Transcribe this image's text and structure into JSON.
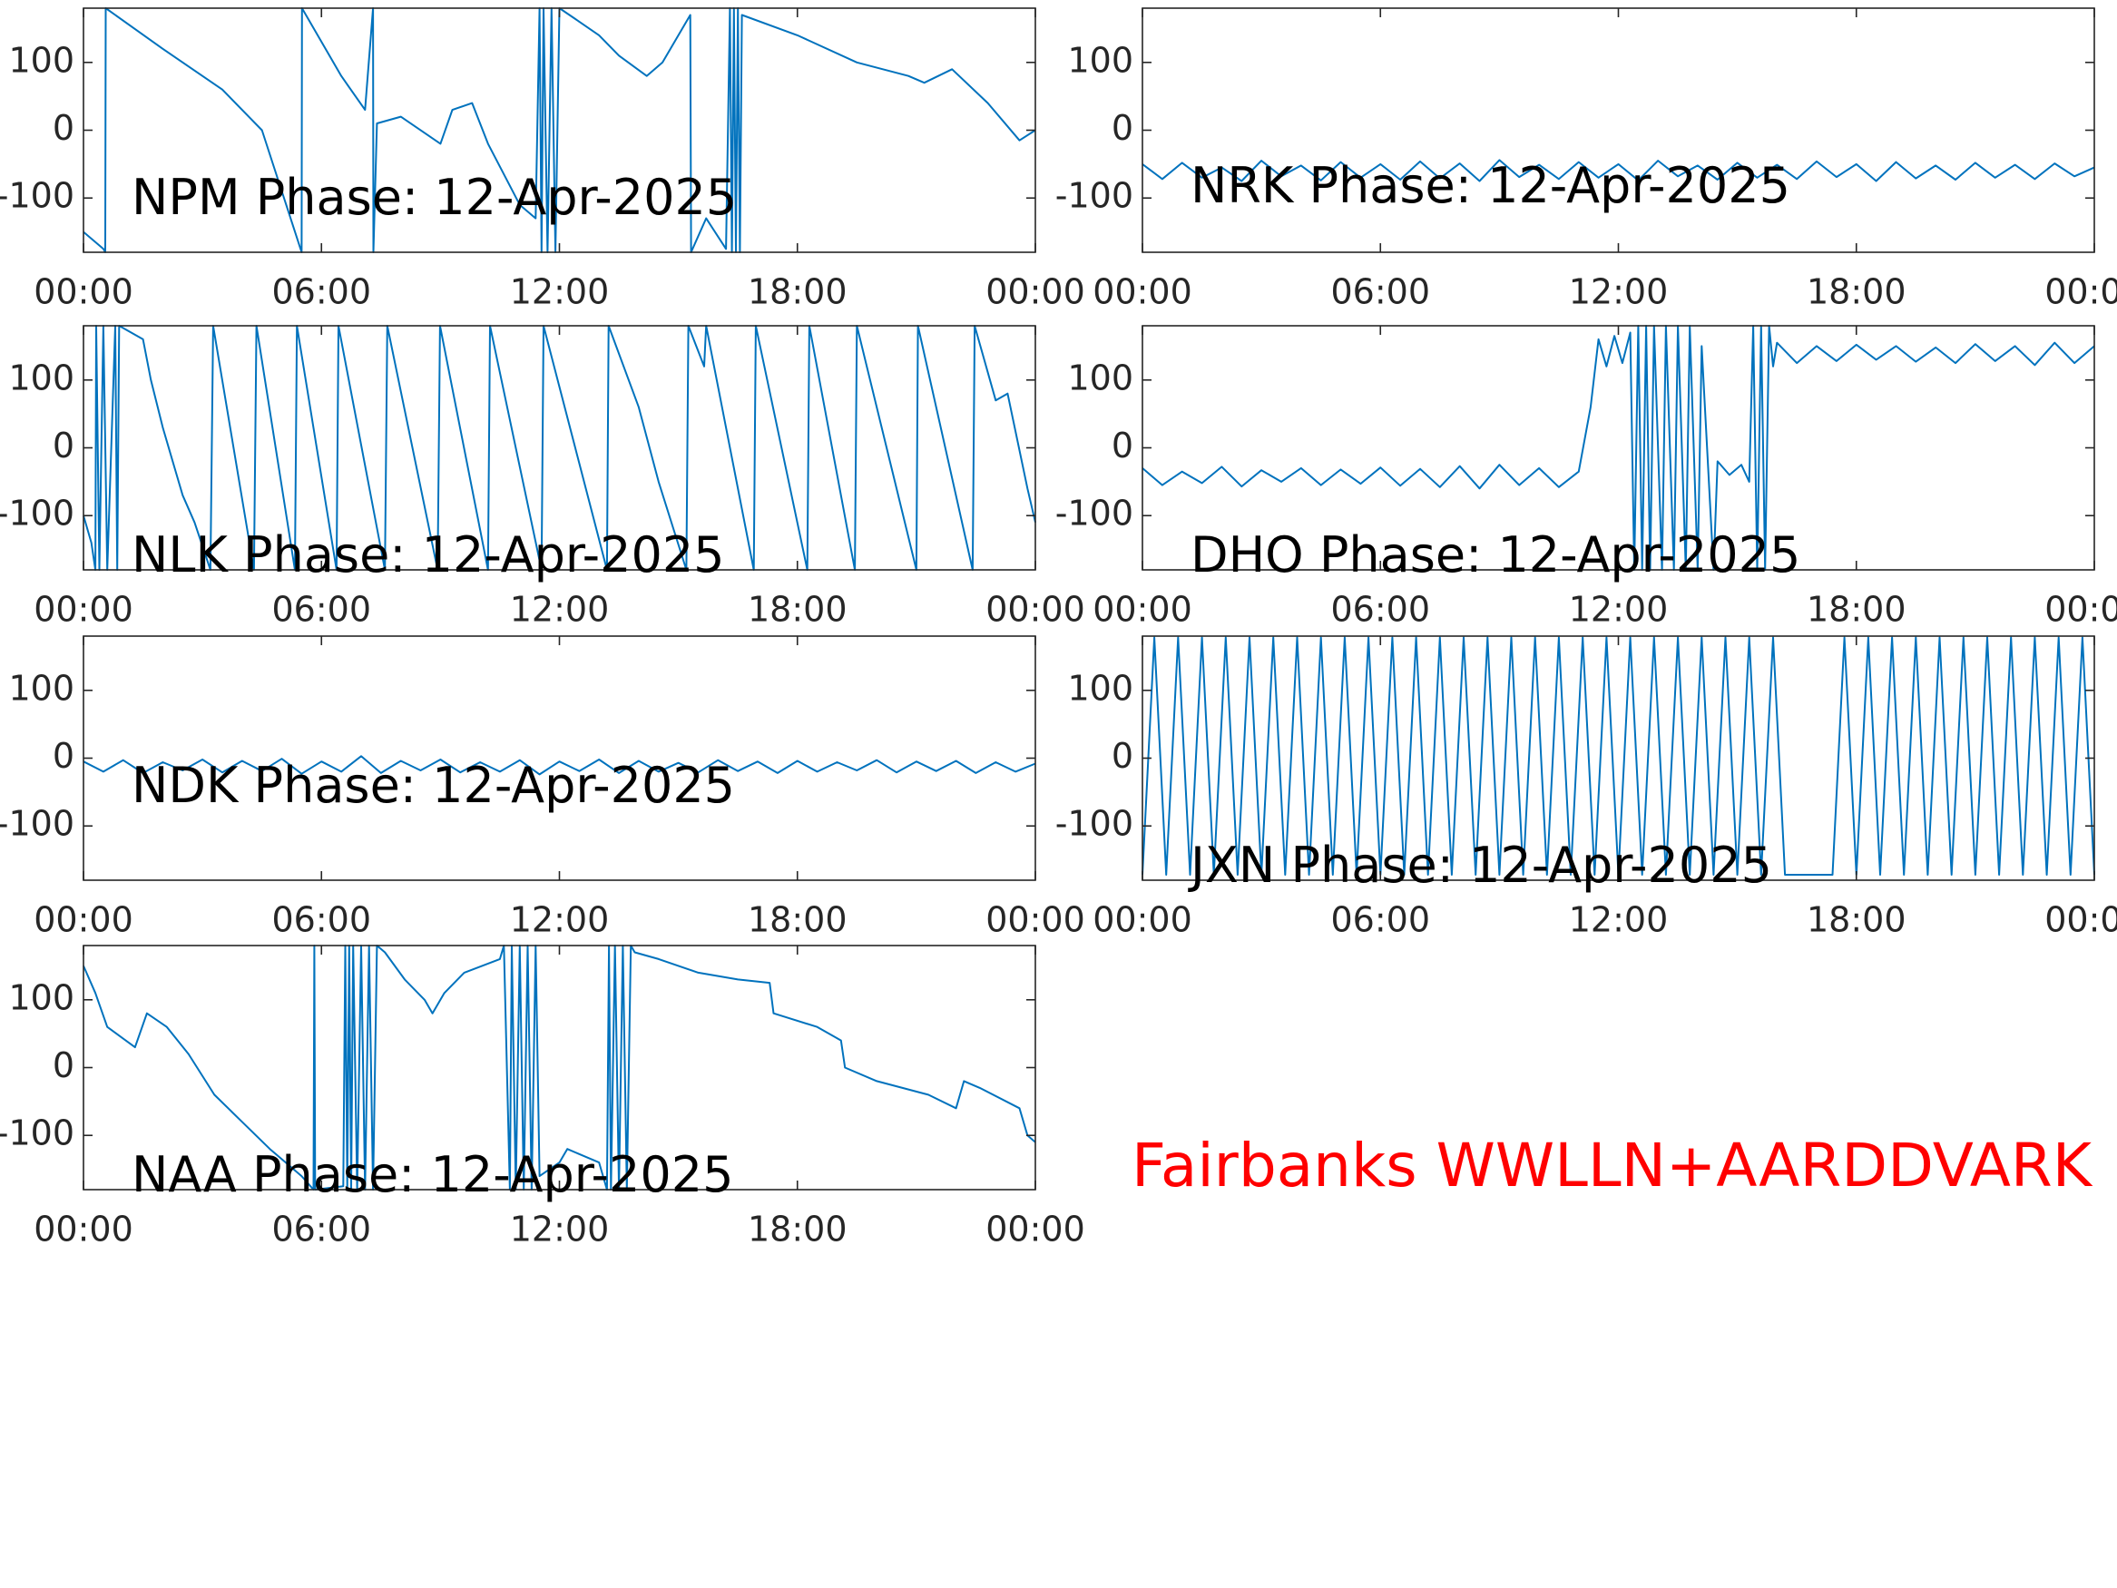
{
  "chart_data": [
    {
      "type": "line",
      "title": "NPM Phase: 12-Apr-2025",
      "color": "#0072bd",
      "x": [
        0,
        0.5,
        0.55,
        0.56,
        2,
        3.5,
        4.5,
        5.5,
        5.51,
        6.5,
        7.1,
        7.3,
        7.31,
        7.4,
        8,
        9,
        9.3,
        9.8,
        10.2,
        11,
        11.4,
        11.5,
        11.55,
        11.6,
        11.7,
        11.8,
        11.9,
        12,
        12.5,
        13,
        13.5,
        14.2,
        14.6,
        15.3,
        15.32,
        15.7,
        16.2,
        16.3,
        16.35,
        16.4,
        16.45,
        16.5,
        16.55,
        16.6,
        18,
        19.5,
        20.8,
        21.2,
        21.9,
        22.8,
        23.6,
        24
      ],
      "values": [
        -150,
        -175,
        -180,
        180,
        120,
        60,
        0,
        -180,
        180,
        80,
        30,
        180,
        -180,
        10,
        20,
        -20,
        30,
        40,
        -20,
        -110,
        -130,
        180,
        -180,
        180,
        -180,
        180,
        -180,
        180,
        160,
        140,
        110,
        80,
        100,
        170,
        -180,
        -130,
        -175,
        180,
        -180,
        180,
        -180,
        180,
        -180,
        170,
        140,
        100,
        80,
        70,
        90,
        40,
        -15,
        0
      ],
      "xlim": [
        0,
        24
      ],
      "ylim": [
        -180,
        180
      ],
      "xticks": [
        {
          "value": 0,
          "label": "00:00"
        },
        {
          "value": 6,
          "label": "06:00"
        },
        {
          "value": 12,
          "label": "12:00"
        },
        {
          "value": 18,
          "label": "18:00"
        },
        {
          "value": 24,
          "label": "00:00"
        }
      ],
      "yticks": [
        -100,
        0,
        100
      ]
    },
    {
      "type": "line",
      "title": "NRK Phase: 12-Apr-2025",
      "color": "#0072bd",
      "x": [
        0,
        0.5,
        1,
        1.5,
        2,
        2.5,
        3,
        3.5,
        4,
        4.5,
        5,
        5.5,
        6,
        6.5,
        7,
        7.5,
        8,
        8.5,
        9,
        9.5,
        10,
        10.5,
        11,
        11.5,
        12,
        12.5,
        13,
        13.5,
        14,
        14.5,
        15,
        15.5,
        16,
        16.5,
        17,
        17.5,
        18,
        18.5,
        19,
        19.5,
        20,
        20.5,
        21,
        21.5,
        22,
        22.5,
        23,
        23.5,
        24
      ],
      "values": [
        -50,
        -72,
        -48,
        -70,
        -55,
        -75,
        -45,
        -68,
        -52,
        -74,
        -47,
        -70,
        -50,
        -73,
        -46,
        -71,
        -49,
        -75,
        -44,
        -69,
        -51,
        -72,
        -47,
        -70,
        -50,
        -74,
        -45,
        -68,
        -52,
        -73,
        -48,
        -70,
        -51,
        -72,
        -46,
        -69,
        -50,
        -75,
        -47,
        -71,
        -52,
        -73,
        -48,
        -70,
        -51,
        -72,
        -49,
        -68,
        -55
      ],
      "xlim": [
        0,
        24
      ],
      "ylim": [
        -180,
        180
      ],
      "xticks": [
        {
          "value": 0,
          "label": "00:00"
        },
        {
          "value": 6,
          "label": "06:00"
        },
        {
          "value": 12,
          "label": "12:00"
        },
        {
          "value": 18,
          "label": "18:00"
        },
        {
          "value": 24,
          "label": "00:00"
        }
      ],
      "yticks": [
        -100,
        0,
        100
      ]
    },
    {
      "type": "line",
      "title": "NLK Phase: 12-Apr-2025",
      "color": "#0072bd",
      "x": [
        0,
        0.2,
        0.3,
        0.32,
        0.4,
        0.5,
        0.6,
        0.8,
        0.85,
        0.9,
        1.5,
        1.7,
        2,
        2.3,
        2.5,
        2.8,
        3.2,
        3.27,
        4.3,
        4.36,
        5.33,
        5.38,
        6.38,
        6.43,
        7.6,
        7.66,
        8.93,
        8.99,
        10.2,
        10.25,
        11.55,
        11.6,
        13.2,
        13.24,
        14,
        14.5,
        15.2,
        15.25,
        15.65,
        15.7,
        16.9,
        16.95,
        18.25,
        18.3,
        19.45,
        19.5,
        21,
        21.04,
        22.42,
        22.47,
        23,
        23.3,
        23.8,
        24
      ],
      "values": [
        -100,
        -140,
        -180,
        180,
        -180,
        180,
        -180,
        180,
        -180,
        180,
        160,
        100,
        30,
        -30,
        -70,
        -110,
        -180,
        180,
        -180,
        180,
        -180,
        180,
        -180,
        180,
        -180,
        180,
        -180,
        180,
        -180,
        180,
        -180,
        180,
        -180,
        180,
        60,
        -50,
        -180,
        180,
        120,
        180,
        -180,
        180,
        -180,
        180,
        -180,
        180,
        -180,
        180,
        -180,
        180,
        70,
        80,
        -60,
        -110
      ],
      "xlim": [
        0,
        24
      ],
      "ylim": [
        -180,
        180
      ],
      "xticks": [
        {
          "value": 0,
          "label": "00:00"
        },
        {
          "value": 6,
          "label": "06:00"
        },
        {
          "value": 12,
          "label": "12:00"
        },
        {
          "value": 18,
          "label": "18:00"
        },
        {
          "value": 24,
          "label": "00:00"
        }
      ],
      "yticks": [
        -100,
        0,
        100
      ]
    },
    {
      "type": "line",
      "title": "DHO Phase: 12-Apr-2025",
      "color": "#0072bd",
      "x": [
        0,
        0.5,
        1,
        1.5,
        2,
        2.5,
        3,
        3.5,
        4,
        4.5,
        5,
        5.5,
        6,
        6.5,
        7,
        7.5,
        8,
        8.5,
        9,
        9.5,
        10,
        10.5,
        11,
        11.3,
        11.5,
        11.7,
        11.9,
        12.1,
        12.3,
        12.4,
        12.5,
        12.6,
        12.7,
        12.8,
        12.9,
        13.1,
        13.2,
        13.4,
        13.5,
        13.7,
        13.8,
        14,
        14.1,
        14.4,
        14.5,
        14.8,
        15.1,
        15.3,
        15.4,
        15.5,
        15.6,
        15.7,
        15.8,
        15.9,
        16,
        16.5,
        17,
        17.5,
        18,
        18.5,
        19,
        19.5,
        20,
        20.5,
        21,
        21.5,
        22,
        22.5,
        23,
        23.5,
        24
      ],
      "values": [
        -30,
        -55,
        -35,
        -52,
        -28,
        -57,
        -33,
        -50,
        -30,
        -55,
        -32,
        -53,
        -29,
        -56,
        -31,
        -58,
        -27,
        -60,
        -25,
        -55,
        -30,
        -58,
        -35,
        60,
        160,
        120,
        165,
        125,
        170,
        -180,
        180,
        -180,
        180,
        -180,
        180,
        -180,
        180,
        -180,
        180,
        -180,
        180,
        -180,
        150,
        -180,
        -20,
        -40,
        -25,
        -50,
        180,
        -180,
        180,
        -180,
        180,
        120,
        155,
        125,
        150,
        128,
        152,
        130,
        150,
        127,
        148,
        125,
        153,
        128,
        150,
        122,
        155,
        125,
        150
      ],
      "xlim": [
        0,
        24
      ],
      "ylim": [
        -180,
        180
      ],
      "xticks": [
        {
          "value": 0,
          "label": "00:00"
        },
        {
          "value": 6,
          "label": "06:00"
        },
        {
          "value": 12,
          "label": "12:00"
        },
        {
          "value": 18,
          "label": "18:00"
        },
        {
          "value": 24,
          "label": "00:00"
        }
      ],
      "yticks": [
        -100,
        0,
        100
      ]
    },
    {
      "type": "line",
      "title": "NDK Phase: 12-Apr-2025",
      "color": "#0072bd",
      "x": [
        0,
        0.5,
        1,
        1.5,
        2,
        2.5,
        3,
        3.5,
        4,
        4.5,
        5,
        5.5,
        6,
        6.5,
        7,
        7.5,
        8,
        8.5,
        9,
        9.5,
        10,
        10.5,
        11,
        11.5,
        12,
        12.5,
        13,
        13.5,
        14,
        14.5,
        15,
        15.5,
        16,
        16.5,
        17,
        17.5,
        18,
        18.5,
        19,
        19.5,
        20,
        20.5,
        21,
        21.5,
        22,
        22.5,
        23,
        23.5,
        24
      ],
      "values": [
        -5,
        -20,
        -3,
        -22,
        -6,
        -18,
        -2,
        -21,
        -4,
        -19,
        -1,
        -23,
        -5,
        -20,
        3,
        -22,
        -4,
        -18,
        -2,
        -21,
        -6,
        -20,
        -3,
        -24,
        -5,
        -19,
        -2,
        -22,
        -4,
        -20,
        -7,
        -21,
        -3,
        -19,
        -5,
        -22,
        -4,
        -20,
        -6,
        -18,
        -3,
        -21,
        -5,
        -19,
        -4,
        -22,
        -6,
        -20,
        -8
      ],
      "xlim": [
        0,
        24
      ],
      "ylim": [
        -180,
        180
      ],
      "xticks": [
        {
          "value": 0,
          "label": "00:00"
        },
        {
          "value": 6,
          "label": "06:00"
        },
        {
          "value": 12,
          "label": "12:00"
        },
        {
          "value": 18,
          "label": "18:00"
        },
        {
          "value": 24,
          "label": "00:00"
        }
      ],
      "yticks": [
        -100,
        0,
        100
      ]
    },
    {
      "type": "line",
      "title": "JXN Phase: 12-Apr-2025",
      "color": "#0072bd",
      "x": [
        0,
        0.3,
        0.6,
        0.9,
        1.2,
        1.5,
        1.8,
        2.1,
        2.4,
        2.7,
        3,
        3.3,
        3.6,
        3.9,
        4.2,
        4.5,
        4.8,
        5.1,
        5.4,
        5.7,
        6,
        6.3,
        6.6,
        6.9,
        7.2,
        7.5,
        7.8,
        8.1,
        8.4,
        8.7,
        9,
        9.3,
        9.6,
        9.9,
        10.2,
        10.5,
        10.8,
        11.1,
        11.4,
        11.7,
        12,
        12.3,
        12.6,
        12.9,
        13.2,
        13.5,
        13.8,
        14.1,
        14.4,
        14.7,
        15,
        15.3,
        15.6,
        15.9,
        16.2,
        16.5,
        16.8,
        17.1,
        17.4,
        17.7,
        18,
        18.3,
        18.6,
        18.9,
        19.2,
        19.5,
        19.8,
        20.1,
        20.4,
        20.7,
        21,
        21.3,
        21.6,
        21.9,
        22.2,
        22.5,
        22.8,
        23.1,
        23.4,
        23.7,
        24
      ],
      "values": [
        -172,
        178,
        -172,
        178,
        -172,
        178,
        -172,
        178,
        -172,
        178,
        -172,
        178,
        -172,
        178,
        -172,
        178,
        -172,
        178,
        -172,
        178,
        -172,
        178,
        -172,
        178,
        -172,
        178,
        -172,
        178,
        -172,
        178,
        -172,
        178,
        -172,
        178,
        -172,
        178,
        -172,
        178,
        -172,
        178,
        -172,
        178,
        -172,
        178,
        -172,
        178,
        -172,
        178,
        -172,
        178,
        -172,
        178,
        -172,
        178,
        -172,
        -172,
        -172,
        -172,
        -172,
        178,
        -172,
        178,
        -172,
        178,
        -172,
        178,
        -172,
        178,
        -172,
        178,
        -172,
        178,
        -172,
        178,
        -172,
        178,
        -172,
        178,
        -172,
        178,
        -172
      ],
      "xlim": [
        0,
        24
      ],
      "ylim": [
        -180,
        180
      ],
      "xticks": [
        {
          "value": 0,
          "label": "00:00"
        },
        {
          "value": 6,
          "label": "06:00"
        },
        {
          "value": 12,
          "label": "12:00"
        },
        {
          "value": 18,
          "label": "18:00"
        },
        {
          "value": 24,
          "label": "00:00"
        }
      ],
      "yticks": [
        -100,
        0,
        100
      ]
    },
    {
      "type": "line",
      "title": "NAA Phase: 12-Apr-2025",
      "color": "#0072bd",
      "x": [
        0,
        0.3,
        0.6,
        1.3,
        1.6,
        2.1,
        2.65,
        3.3,
        4,
        4.7,
        5.5,
        5.8,
        5.82,
        5.84,
        6.55,
        6.6,
        6.65,
        6.7,
        6.75,
        6.8,
        6.9,
        7,
        7.1,
        7.2,
        7.3,
        7.4,
        7.6,
        8.1,
        8.6,
        8.8,
        9.1,
        9.6,
        10.5,
        10.6,
        10.75,
        10.8,
        10.9,
        11,
        11.1,
        11.2,
        11.3,
        11.4,
        11.5,
        12,
        12.2,
        13,
        13.2,
        13.25,
        13.3,
        13.4,
        13.5,
        13.6,
        13.7,
        13.8,
        13.9,
        14.5,
        15.5,
        16.5,
        17.3,
        17.4,
        18.5,
        19.1,
        19.2,
        20,
        21.3,
        22,
        22.2,
        22.6,
        23.6,
        23.8,
        24
      ],
      "values": [
        150,
        110,
        60,
        30,
        80,
        60,
        20,
        -40,
        -80,
        -120,
        -160,
        -180,
        180,
        -180,
        -175,
        180,
        -180,
        180,
        -180,
        180,
        -180,
        180,
        -180,
        180,
        -180,
        180,
        170,
        130,
        100,
        80,
        110,
        140,
        160,
        180,
        -180,
        180,
        -180,
        180,
        -180,
        180,
        -180,
        180,
        -160,
        -140,
        -120,
        -140,
        -180,
        180,
        -180,
        180,
        -180,
        180,
        -180,
        180,
        170,
        160,
        140,
        130,
        125,
        80,
        60,
        40,
        0,
        -20,
        -40,
        -60,
        -20,
        -30,
        -60,
        -100,
        -110
      ],
      "xlim": [
        0,
        24
      ],
      "ylim": [
        -180,
        180
      ],
      "xticks": [
        {
          "value": 0,
          "label": "00:00"
        },
        {
          "value": 6,
          "label": "06:00"
        },
        {
          "value": 12,
          "label": "12:00"
        },
        {
          "value": 18,
          "label": "18:00"
        },
        {
          "value": 24,
          "label": "00:00"
        }
      ],
      "yticks": [
        -100,
        0,
        100
      ]
    }
  ],
  "annotation": "Fairbanks WWLLN+AARDDVARK"
}
